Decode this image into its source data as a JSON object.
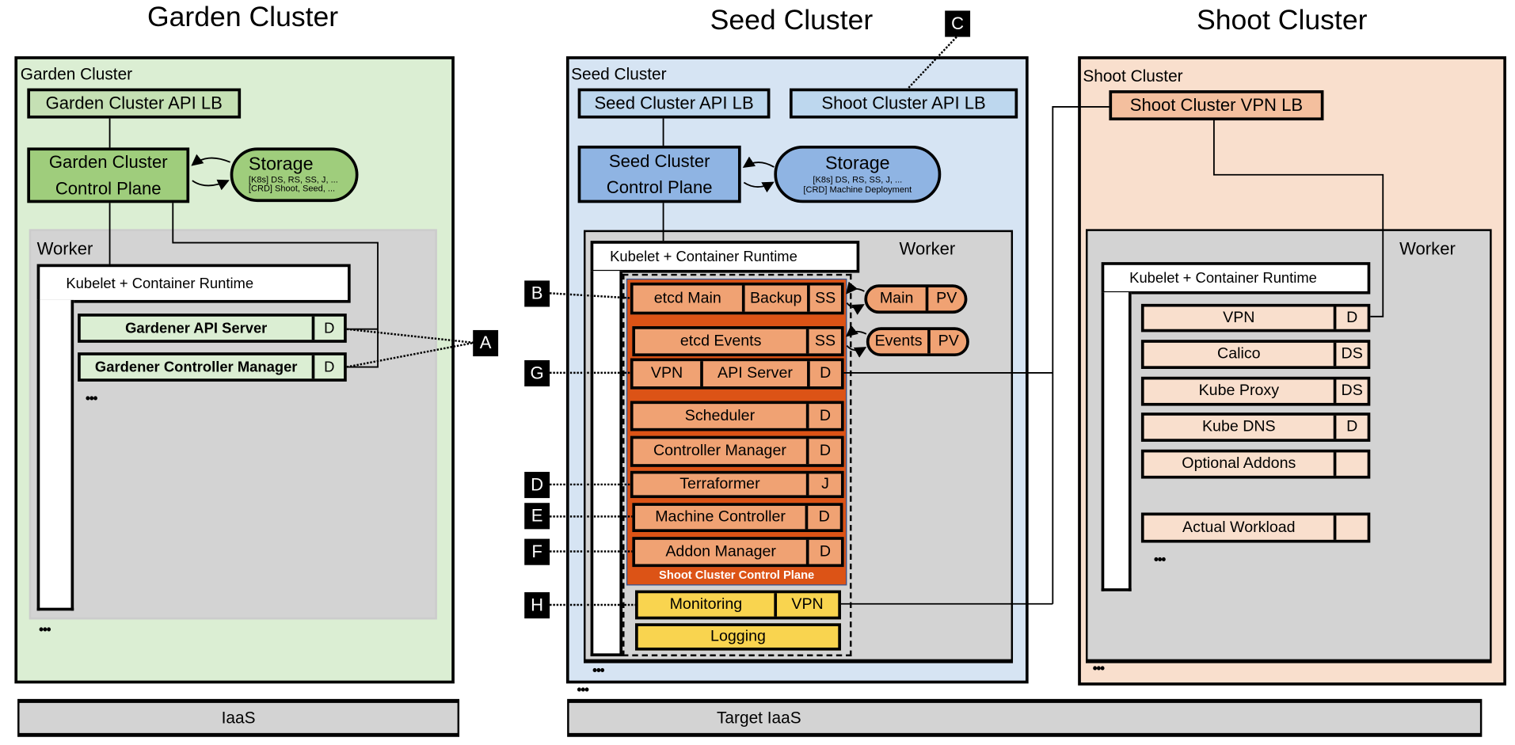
{
  "titles": {
    "garden": "Garden Cluster",
    "seed": "Seed Cluster",
    "shoot": "Shoot Cluster"
  },
  "colors": {
    "garden_bg": "#dbeed3",
    "garden_box": "#c5e0b4",
    "garden_cp": "#9fcd7c",
    "seed_bg": "#d6e4f3",
    "seed_box": "#bdd7ee",
    "seed_cp": "#8fb4e3",
    "shoot_bg": "#f9dfcd",
    "shoot_lb": "#f4bf9e",
    "control_plane_orange": "#dc5316",
    "component_orange": "#f0a273",
    "monitoring_yellow": "#f9d44f",
    "worker_gray": "#d3d3d3"
  },
  "garden": {
    "label": "Garden Cluster",
    "api_lb": "Garden Cluster API LB",
    "control_plane": [
      "Garden Cluster",
      "Control Plane"
    ],
    "storage": {
      "title": "Storage",
      "lines": [
        "[K8s] DS, RS, SS, J, ...",
        "[CRD] Shoot, Seed, ..."
      ]
    },
    "worker": "Worker",
    "kubelet": "Kubelet + Container Runtime",
    "components": [
      {
        "name": "Gardener API Server",
        "type": "D"
      },
      {
        "name": "Gardener Controller Manager",
        "type": "D"
      }
    ],
    "ellipsis_worker": "•••",
    "ellipsis_cluster": "•••",
    "iaas": "IaaS"
  },
  "seed": {
    "label": "Seed Cluster",
    "api_lb": "Seed Cluster API LB",
    "shoot_api_lb": "Shoot Cluster API LB",
    "control_plane": [
      "Seed Cluster",
      "Control Plane"
    ],
    "storage": {
      "title": "Storage",
      "lines": [
        "[K8s] DS, RS, SS, J, ...",
        "[CRD] Machine Deployment"
      ]
    },
    "worker": "Worker",
    "kubelet": "Kubelet + Container Runtime",
    "shoot_control_plane_label": "Shoot Cluster Control Plane",
    "etcd_main": {
      "name": "etcd Main",
      "backup": "Backup",
      "type": "SS"
    },
    "etcd_events": {
      "name": "etcd Events",
      "type": "SS"
    },
    "api_server": {
      "vpn": "VPN",
      "name": "API Server",
      "type": "D"
    },
    "components": [
      {
        "name": "Scheduler",
        "type": "D"
      },
      {
        "name": "Controller Manager",
        "type": "D"
      },
      {
        "name": "Terraformer",
        "type": "J"
      },
      {
        "name": "Machine Controller",
        "type": "D"
      },
      {
        "name": "Addon Manager",
        "type": "D"
      }
    ],
    "volumes": [
      {
        "name": "Main",
        "type": "PV"
      },
      {
        "name": "Events",
        "type": "PV"
      }
    ],
    "monitoring": {
      "name": "Monitoring",
      "vpn": "VPN"
    },
    "logging": "Logging",
    "ellipsis_worker": "•••",
    "ellipsis_cluster": "•••",
    "iaas": "Target IaaS"
  },
  "shoot": {
    "label": "Shoot Cluster",
    "vpn_lb": "Shoot Cluster VPN LB",
    "worker": "Worker",
    "kubelet": "Kubelet + Container Runtime",
    "components": [
      {
        "name": "VPN",
        "type": "D"
      },
      {
        "name": "Calico",
        "type": "DS"
      },
      {
        "name": "Kube Proxy",
        "type": "DS"
      },
      {
        "name": "Kube DNS",
        "type": "D"
      },
      {
        "name": "Optional Addons",
        "type": ""
      },
      {
        "name": "Actual Workload",
        "type": ""
      }
    ],
    "ellipsis_worker": "•••",
    "ellipsis_cluster": "•••"
  },
  "callouts": {
    "A": "A",
    "B": "B",
    "C": "C",
    "D": "D",
    "E": "E",
    "F": "F",
    "G": "G",
    "H": "H"
  }
}
